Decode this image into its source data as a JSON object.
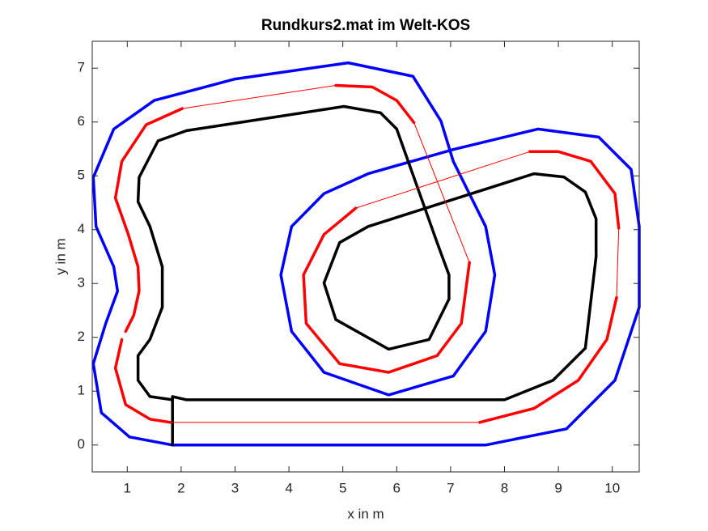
{
  "chart_data": {
    "type": "line",
    "title": "Rundkurs2.mat im Welt-KOS",
    "xlabel": "x in m",
    "ylabel": "y in m",
    "xlim": [
      0.35,
      10.5
    ],
    "ylim": [
      -0.5,
      7.5
    ],
    "xticks": [
      1,
      2,
      3,
      4,
      5,
      6,
      7,
      8,
      9,
      10
    ],
    "yticks": [
      0,
      1,
      2,
      3,
      4,
      5,
      6,
      7
    ],
    "box": true,
    "series": [
      {
        "color": "#0000ff",
        "marker": ".",
        "x": [
          1.84,
          7.65,
          9.15,
          10.05,
          10.5,
          10.5,
          10.35,
          9.75,
          8.62,
          7.05,
          5.47,
          4.65,
          4.05,
          3.85,
          4.05,
          4.65,
          5.85,
          7.05,
          7.65,
          7.82,
          7.65,
          7.05,
          6.82,
          6.3,
          5.1,
          3.0,
          1.5,
          0.75,
          0.37,
          0.42,
          0.75,
          0.82,
          0.6,
          0.37,
          0.52,
          1.04,
          1.84
        ],
        "y": [
          0,
          0,
          0.3,
          1.2,
          2.56,
          4.06,
          5.12,
          5.72,
          5.87,
          5.49,
          5.04,
          4.67,
          4.06,
          3.16,
          2.11,
          1.35,
          0.93,
          1.28,
          2.11,
          3.16,
          4.06,
          5.27,
          6.02,
          6.85,
          7.1,
          6.8,
          6.4,
          5.87,
          4.97,
          4.06,
          3.31,
          2.86,
          2.26,
          1.51,
          0.6,
          0.15,
          0
        ]
      },
      {
        "color": "#000000",
        "marker": ".",
        "x": [
          1.84,
          1.84,
          2.1,
          8.0,
          8.9,
          9.5,
          9.7,
          9.7,
          9.5,
          9.1,
          8.55,
          5.47,
          4.94,
          4.65,
          4.87,
          5.85,
          6.6,
          6.97,
          6.97,
          6.75,
          6.0,
          5.7,
          5.02,
          2.1,
          1.57,
          1.22,
          1.2,
          1.42,
          1.65,
          1.65,
          1.42,
          1.2,
          1.2,
          1.42,
          1.84
        ],
        "y": [
          0,
          0.9,
          0.84,
          0.84,
          1.2,
          1.8,
          3.5,
          4.2,
          4.7,
          4.98,
          5.04,
          4.06,
          3.76,
          3.01,
          2.33,
          1.78,
          1.96,
          2.71,
          3.16,
          3.76,
          5.87,
          6.17,
          6.29,
          5.84,
          5.65,
          4.97,
          4.52,
          4.06,
          3.31,
          2.56,
          1.96,
          1.66,
          1.2,
          0.9,
          0.84
        ]
      },
      {
        "color": "#ff0000",
        "marker": ".",
        "x": [
          2.02,
          1.35,
          0.9,
          0.78,
          1.02,
          1.2,
          1.22,
          1.12,
          0.97
        ],
        "y": [
          6.25,
          5.95,
          5.27,
          4.59,
          3.91,
          3.31,
          2.86,
          2.41,
          2.11
        ]
      },
      {
        "color": "#ff0000",
        "marker": ".",
        "x": [
          0.9,
          0.78,
          0.97,
          1.42,
          1.8
        ],
        "y": [
          1.96,
          1.43,
          0.75,
          0.48,
          0.42
        ]
      },
      {
        "color": "#ff0000",
        "marker": ".",
        "x": [
          7.54,
          8.55,
          9.37,
          9.9,
          10.08
        ],
        "y": [
          0.42,
          0.68,
          1.2,
          1.96,
          2.74
        ]
      },
      {
        "color": "#ff0000",
        "marker": ".",
        "x": [
          10.12,
          10.05,
          9.6,
          9.0,
          8.47
        ],
        "y": [
          4.03,
          4.67,
          5.27,
          5.45,
          5.45
        ]
      },
      {
        "color": "#ff0000",
        "marker": ".",
        "x": [
          5.24,
          4.65,
          4.27,
          4.32,
          4.94,
          5.85,
          6.75,
          7.2,
          7.35
        ],
        "y": [
          4.4,
          3.91,
          3.16,
          2.26,
          1.51,
          1.35,
          1.66,
          2.26,
          3.39
        ]
      },
      {
        "color": "#ff0000",
        "marker": ".",
        "x": [
          6.32,
          6.0,
          5.55,
          4.87
        ],
        "y": [
          5.99,
          6.4,
          6.65,
          6.68
        ]
      },
      {
        "color": "#ff0000",
        "x": [
          1.8,
          7.54,
          null,
          10.08,
          10.12,
          null,
          8.47,
          5.24,
          null,
          7.35,
          6.32,
          null,
          4.87,
          2.02
        ],
        "y": [
          0.42,
          0.42,
          null,
          2.74,
          4.03,
          null,
          5.45,
          4.4,
          null,
          3.39,
          5.99,
          null,
          6.68,
          6.25
        ]
      }
    ]
  }
}
